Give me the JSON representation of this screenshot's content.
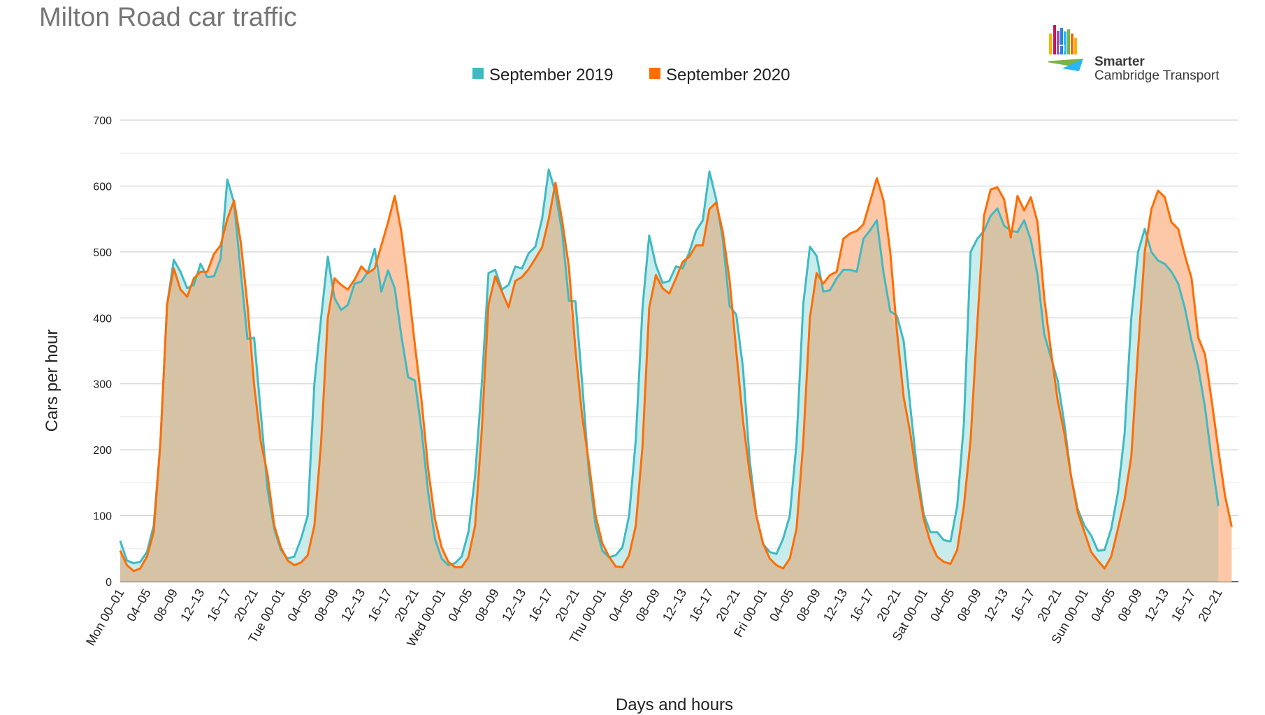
{
  "header": {
    "title": "Milton Road car traffic"
  },
  "logo": {
    "line1": "Smarter",
    "line2": "Cambridge Transport",
    "colors": [
      "#f4b400",
      "#c2185b",
      "#1e88e5",
      "#7cb342",
      "#29b6f6",
      "#ef6c00"
    ]
  },
  "colors": {
    "series_2019": "#3fbac2",
    "series_2020": "#ff6d01",
    "fill_2019": "#c8ebec",
    "fill_2020": "#fdc8a8",
    "overlap": "#d6c3a5"
  },
  "chart_data": {
    "type": "area",
    "xlabel": "Days and hours",
    "ylabel": "Cars per hour",
    "ylim": [
      0,
      700
    ],
    "yticks": [
      0,
      100,
      200,
      300,
      400,
      500,
      600,
      700
    ],
    "grid": true,
    "legend_position": "top",
    "x_hours": 168,
    "x_tick_labels": [
      {
        "hour": 0,
        "label": "Mon 00–01"
      },
      {
        "hour": 4,
        "label": "04–05"
      },
      {
        "hour": 8,
        "label": "08–09"
      },
      {
        "hour": 12,
        "label": "12–13"
      },
      {
        "hour": 16,
        "label": "16–17"
      },
      {
        "hour": 20,
        "label": "20–21"
      },
      {
        "hour": 24,
        "label": "Tue 00–01"
      },
      {
        "hour": 28,
        "label": "04–05"
      },
      {
        "hour": 32,
        "label": "08–09"
      },
      {
        "hour": 36,
        "label": "12–13"
      },
      {
        "hour": 40,
        "label": "16–17"
      },
      {
        "hour": 44,
        "label": "20–21"
      },
      {
        "hour": 48,
        "label": "Wed 00–01"
      },
      {
        "hour": 52,
        "label": "04–05"
      },
      {
        "hour": 56,
        "label": "08–09"
      },
      {
        "hour": 60,
        "label": "12–13"
      },
      {
        "hour": 64,
        "label": "16–17"
      },
      {
        "hour": 68,
        "label": "20–21"
      },
      {
        "hour": 72,
        "label": "Thu 00–01"
      },
      {
        "hour": 76,
        "label": "04–05"
      },
      {
        "hour": 80,
        "label": "08–09"
      },
      {
        "hour": 84,
        "label": "12–13"
      },
      {
        "hour": 88,
        "label": "16–17"
      },
      {
        "hour": 92,
        "label": "20–21"
      },
      {
        "hour": 96,
        "label": "Fri 00–01"
      },
      {
        "hour": 100,
        "label": "04–05"
      },
      {
        "hour": 104,
        "label": "08–09"
      },
      {
        "hour": 108,
        "label": "12–13"
      },
      {
        "hour": 112,
        "label": "16–17"
      },
      {
        "hour": 116,
        "label": "20–21"
      },
      {
        "hour": 120,
        "label": "Sat 00–01"
      },
      {
        "hour": 124,
        "label": "04–05"
      },
      {
        "hour": 128,
        "label": "08–09"
      },
      {
        "hour": 132,
        "label": "12–13"
      },
      {
        "hour": 136,
        "label": "16–17"
      },
      {
        "hour": 140,
        "label": "20–21"
      },
      {
        "hour": 144,
        "label": "Sun 00–01"
      },
      {
        "hour": 148,
        "label": "04–05"
      },
      {
        "hour": 152,
        "label": "08–09"
      },
      {
        "hour": 156,
        "label": "12–13"
      },
      {
        "hour": 160,
        "label": "16–17"
      },
      {
        "hour": 164,
        "label": "20–21"
      }
    ],
    "series": [
      {
        "name": "September 2019",
        "color": "#3fbac2",
        "values": [
          62,
          32,
          28,
          30,
          45,
          85,
          210,
          420,
          488,
          470,
          445,
          450,
          482,
          462,
          463,
          490,
          610,
          575,
          470,
          368,
          370,
          255,
          140,
          80,
          48,
          35,
          38,
          65,
          100,
          300,
          400,
          493,
          430,
          412,
          420,
          452,
          455,
          470,
          505,
          440,
          472,
          445,
          372,
          310,
          305,
          230,
          135,
          65,
          35,
          25,
          28,
          38,
          75,
          160,
          300,
          468,
          473,
          443,
          450,
          478,
          475,
          498,
          508,
          550,
          625,
          590,
          530,
          426,
          425,
          300,
          165,
          85,
          47,
          37,
          40,
          52,
          100,
          215,
          415,
          525,
          480,
          453,
          456,
          478,
          475,
          500,
          532,
          548,
          622,
          580,
          518,
          418,
          405,
          325,
          185,
          100,
          57,
          45,
          42,
          65,
          100,
          210,
          420,
          508,
          494,
          440,
          442,
          460,
          473,
          473,
          470,
          520,
          533,
          548,
          468,
          410,
          403,
          365,
          265,
          170,
          102,
          75,
          75,
          63,
          61,
          115,
          240,
          500,
          520,
          532,
          555,
          566,
          540,
          532,
          530,
          548,
          518,
          465,
          375,
          340,
          305,
          240,
          160,
          110,
          85,
          70,
          47,
          48,
          80,
          135,
          225,
          400,
          500,
          535,
          500,
          487,
          482,
          470,
          452,
          415,
          365,
          325,
          265,
          185,
          115
        ]
      },
      {
        "name": "September 2020",
        "color": "#ff6d01",
        "values": [
          47,
          25,
          16,
          20,
          38,
          75,
          210,
          420,
          475,
          443,
          432,
          460,
          470,
          470,
          497,
          510,
          550,
          578,
          515,
          420,
          298,
          212,
          163,
          85,
          52,
          32,
          25,
          29,
          40,
          85,
          210,
          400,
          460,
          450,
          443,
          458,
          478,
          468,
          475,
          510,
          545,
          585,
          530,
          450,
          360,
          275,
          170,
          95,
          52,
          30,
          22,
          22,
          37,
          85,
          230,
          420,
          463,
          440,
          416,
          456,
          462,
          474,
          490,
          507,
          550,
          605,
          548,
          478,
          350,
          250,
          180,
          100,
          58,
          38,
          23,
          22,
          40,
          85,
          205,
          415,
          465,
          445,
          437,
          460,
          485,
          493,
          510,
          510,
          565,
          575,
          530,
          458,
          350,
          245,
          165,
          100,
          58,
          35,
          25,
          20,
          35,
          80,
          210,
          400,
          468,
          452,
          465,
          470,
          520,
          528,
          532,
          542,
          577,
          612,
          578,
          500,
          380,
          280,
          225,
          155,
          95,
          60,
          38,
          30,
          27,
          48,
          115,
          215,
          390,
          555,
          595,
          598,
          580,
          522,
          585,
          563,
          583,
          545,
          430,
          350,
          275,
          225,
          160,
          105,
          75,
          45,
          32,
          20,
          38,
          80,
          125,
          190,
          350,
          500,
          565,
          593,
          583,
          545,
          535,
          495,
          460,
          370,
          345,
          275,
          200,
          130,
          83
        ]
      }
    ]
  }
}
